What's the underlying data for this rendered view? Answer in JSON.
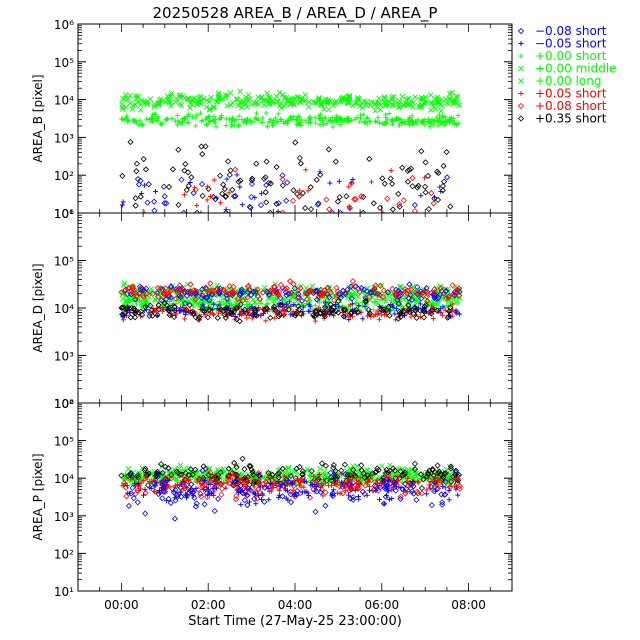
{
  "chart_data": {
    "type": "scatter",
    "title": "20250528 AREA_B / AREA_D / AREA_P",
    "xlabel": "Start Time (27-May-25 23:00:00)",
    "x_ticks": [
      "00:00",
      "02:00",
      "04:00",
      "06:00",
      "08:00"
    ],
    "x_tick_hours": [
      0,
      2,
      4,
      6,
      8
    ],
    "x_range_hours": [
      -1,
      9
    ],
    "y_scale": "log",
    "grid": false,
    "legend_position": "right",
    "legend": [
      {
        "label": "−0.08 short",
        "color": "#0000ff",
        "marker": "diamond"
      },
      {
        "label": "−0.05 short",
        "color": "#0000ff",
        "marker": "plus"
      },
      {
        "label": "+0.00 short",
        "color": "#00ff00",
        "marker": "plus"
      },
      {
        "label": "+0.00 middle",
        "color": "#00ff00",
        "marker": "x"
      },
      {
        "label": "+0.00 long",
        "color": "#00ff00",
        "marker": "x"
      },
      {
        "label": "+0.05 short",
        "color": "#ff0000",
        "marker": "plus"
      },
      {
        "label": "+0.08 short",
        "color": "#ff0000",
        "marker": "diamond"
      },
      {
        "label": "+0.35 short",
        "color": "#000000",
        "marker": "diamond"
      }
    ],
    "panels": [
      {
        "ylabel": "AREA_B [pixel]",
        "ylim": [
          10,
          1000000
        ],
        "y_ticks": [
          "10¹",
          "10²",
          "10³",
          "10⁴",
          "10⁵",
          "10⁶"
        ],
        "series": [
          {
            "marker": "x",
            "color": "#00ff00",
            "typical": 9000,
            "spread": 0.1,
            "tmin": 0.0,
            "tmax": 7.8,
            "n": 320
          },
          {
            "marker": "plus",
            "color": "#00ff00",
            "typical": 2800,
            "spread": 0.08,
            "tmin": 0.0,
            "tmax": 7.8,
            "n": 320
          },
          {
            "marker": "diamond",
            "color": "#000000",
            "typical": 60,
            "spread": 0.45,
            "tmin": 0.0,
            "tmax": 7.6,
            "n": 110
          },
          {
            "marker": "diamond",
            "color": "#0000ff",
            "typical": 30,
            "spread": 0.3,
            "tmin": 0.0,
            "tmax": 7.6,
            "n": 30
          },
          {
            "marker": "plus",
            "color": "#0000ff",
            "typical": 30,
            "spread": 0.3,
            "tmin": 0.0,
            "tmax": 7.6,
            "n": 25
          },
          {
            "marker": "plus",
            "color": "#ff0000",
            "typical": 40,
            "spread": 0.3,
            "tmin": 0.0,
            "tmax": 7.6,
            "n": 20
          },
          {
            "marker": "diamond",
            "color": "#ff0000",
            "typical": 30,
            "spread": 0.3,
            "tmin": 0.0,
            "tmax": 7.6,
            "n": 20
          }
        ]
      },
      {
        "ylabel": "AREA_D [pixel]",
        "ylim": [
          100,
          1000000
        ],
        "y_ticks": [
          "10²",
          "10³",
          "10⁴",
          "10⁵",
          "10⁶"
        ],
        "series": [
          {
            "marker": "x",
            "color": "#00ff00",
            "typical": 20000,
            "spread": 0.1,
            "tmin": 0.0,
            "tmax": 7.8,
            "n": 280
          },
          {
            "marker": "plus",
            "color": "#00ff00",
            "typical": 12000,
            "spread": 0.08,
            "tmin": 0.0,
            "tmax": 7.8,
            "n": 280
          },
          {
            "marker": "diamond",
            "color": "#0000ff",
            "typical": 20000,
            "spread": 0.08,
            "tmin": 0.0,
            "tmax": 7.8,
            "n": 150
          },
          {
            "marker": "diamond",
            "color": "#ff0000",
            "typical": 22000,
            "spread": 0.08,
            "tmin": 0.0,
            "tmax": 7.8,
            "n": 150
          },
          {
            "marker": "plus",
            "color": "#0000ff",
            "typical": 9000,
            "spread": 0.08,
            "tmin": 0.0,
            "tmax": 7.8,
            "n": 150
          },
          {
            "marker": "plus",
            "color": "#ff0000",
            "typical": 8000,
            "spread": 0.08,
            "tmin": 0.0,
            "tmax": 7.8,
            "n": 150
          },
          {
            "marker": "diamond",
            "color": "#000000",
            "typical": 8500,
            "spread": 0.08,
            "tmin": 0.0,
            "tmax": 7.8,
            "n": 150
          }
        ]
      },
      {
        "ylabel": "AREA_P [pixel]",
        "ylim": [
          10,
          1000000
        ],
        "y_ticks": [
          "10¹",
          "10²",
          "10³",
          "10⁴",
          "10⁵",
          "10⁶"
        ],
        "series": [
          {
            "marker": "x",
            "color": "#00ff00",
            "typical": 12000,
            "spread": 0.12,
            "tmin": 0.0,
            "tmax": 7.8,
            "n": 260
          },
          {
            "marker": "plus",
            "color": "#00ff00",
            "typical": 10000,
            "spread": 0.1,
            "tmin": 0.0,
            "tmax": 7.8,
            "n": 200
          },
          {
            "marker": "diamond",
            "color": "#000000",
            "typical": 12000,
            "spread": 0.15,
            "tmin": 0.0,
            "tmax": 7.8,
            "n": 200
          },
          {
            "marker": "plus",
            "color": "#ff0000",
            "typical": 7000,
            "spread": 0.12,
            "tmin": 0.0,
            "tmax": 7.8,
            "n": 200
          },
          {
            "marker": "diamond",
            "color": "#ff0000",
            "typical": 6000,
            "spread": 0.15,
            "tmin": 0.0,
            "tmax": 7.8,
            "n": 120
          },
          {
            "marker": "plus",
            "color": "#0000ff",
            "typical": 5000,
            "spread": 0.2,
            "tmin": 0.0,
            "tmax": 7.8,
            "n": 120
          },
          {
            "marker": "diamond",
            "color": "#0000ff",
            "typical": 4000,
            "spread": 0.25,
            "tmin": 0.0,
            "tmax": 7.8,
            "n": 100
          }
        ]
      }
    ]
  }
}
